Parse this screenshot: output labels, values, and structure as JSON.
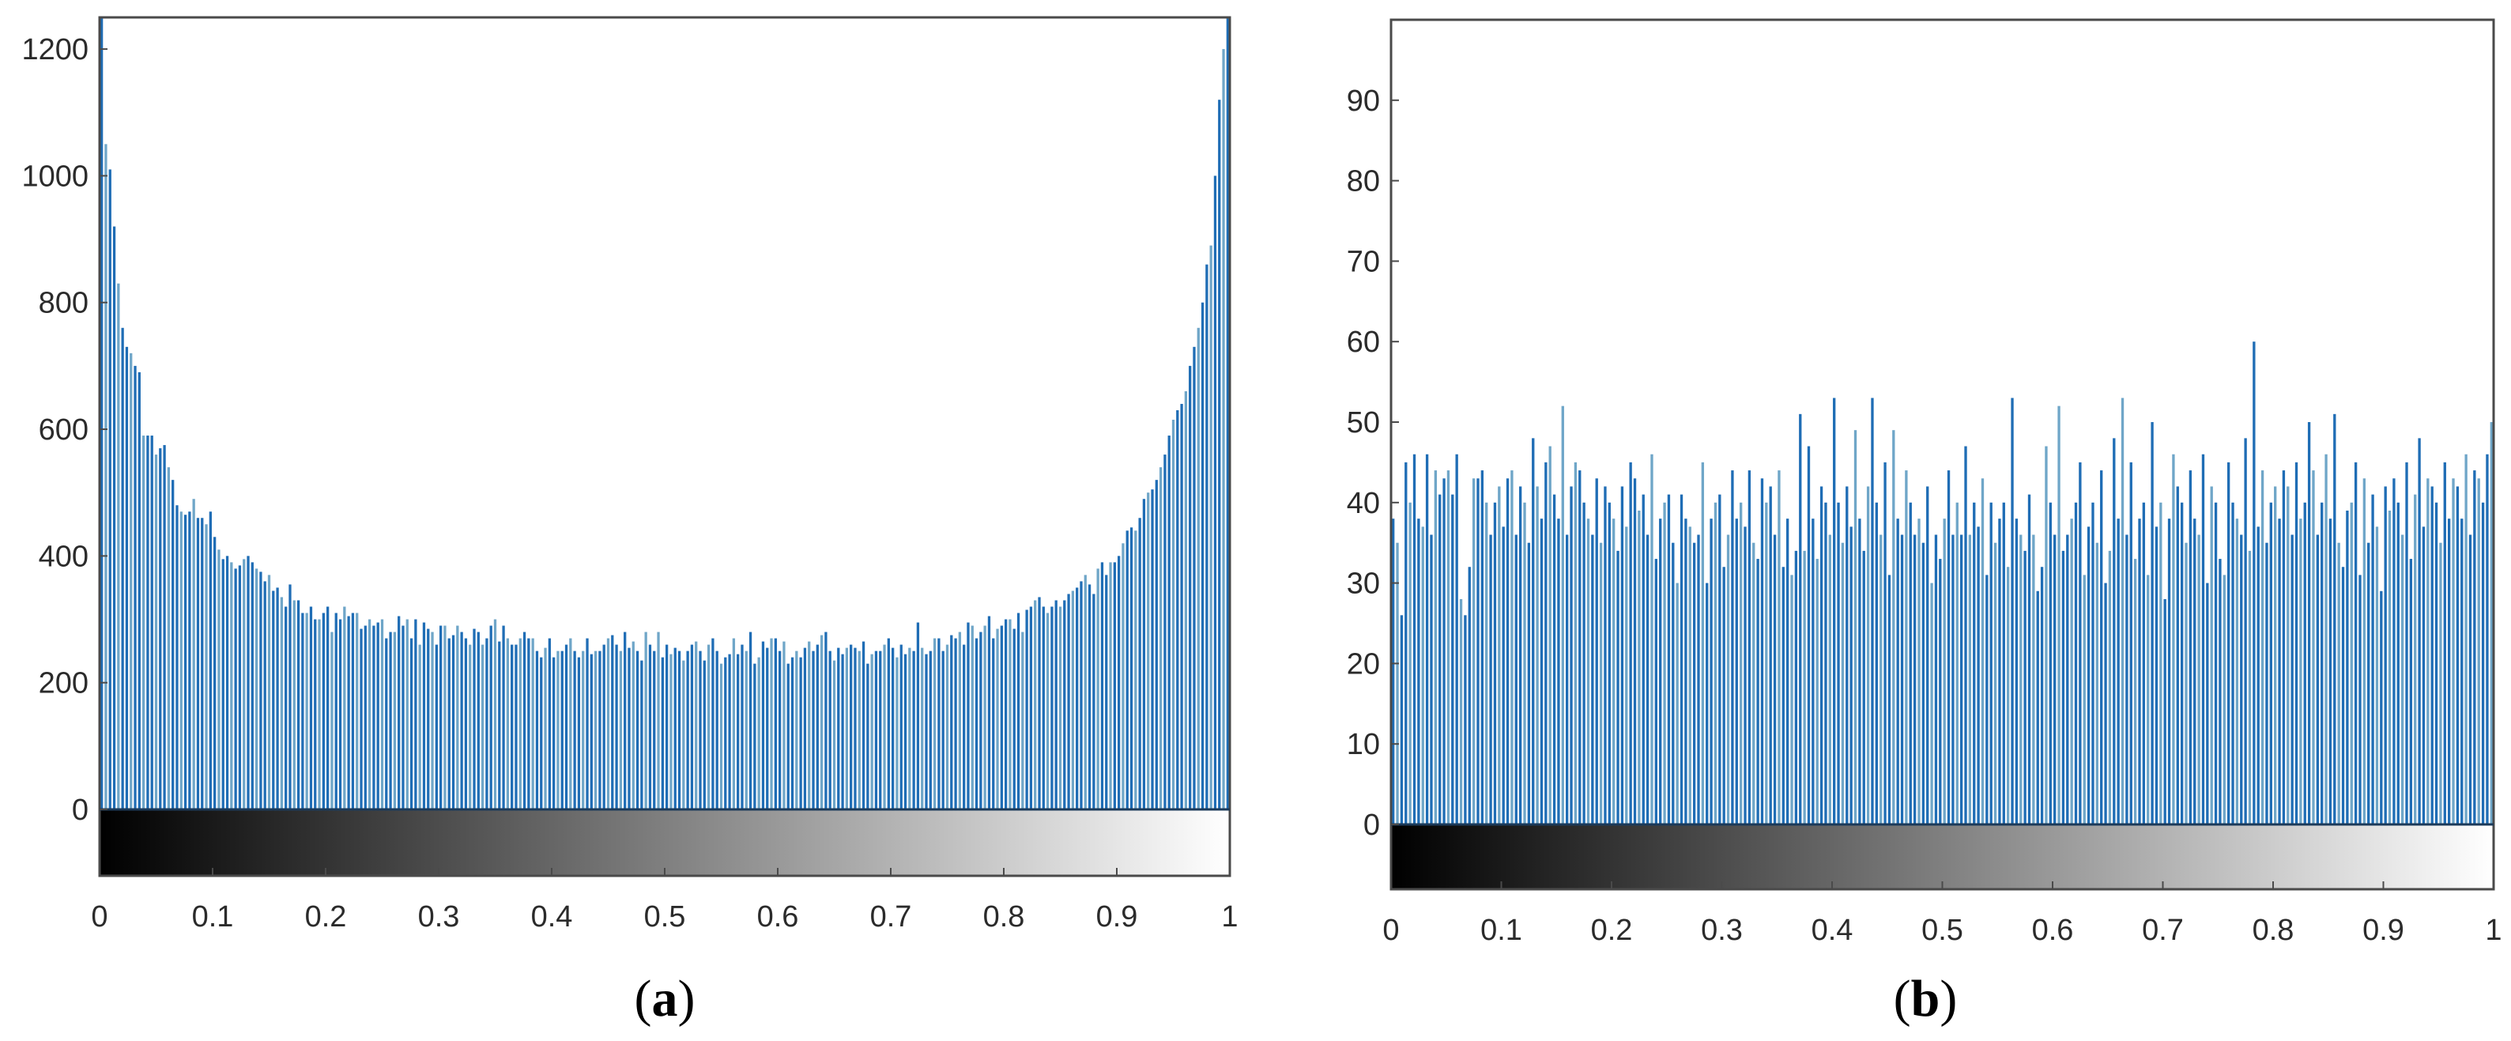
{
  "colors": {
    "bar_primary": "#1f6db5",
    "bar_secondary": "#6fa6c8",
    "axes": "#4a4a4a",
    "text": "#2b2b2b"
  },
  "chart_data": [
    {
      "type": "bar",
      "panel": "a",
      "caption_letter": "a",
      "xlim": [
        0,
        1
      ],
      "ylim": [
        -100,
        1250
      ],
      "x_ticks": [
        "0",
        "0.1",
        "0.2",
        "0.3",
        "0.4",
        "0.5",
        "0.6",
        "0.7",
        "0.8",
        "0.9",
        "1"
      ],
      "y_ticks": [
        "0",
        "200",
        "400",
        "600",
        "800",
        "1000",
        "1200"
      ],
      "colorbar": "grayscale black to white, from 0 to 1, below zero",
      "grid": false,
      "bin_count": 256,
      "values": [
        1250,
        1050,
        1010,
        920,
        830,
        760,
        730,
        720,
        700,
        690,
        590,
        590,
        590,
        560,
        570,
        575,
        540,
        520,
        480,
        470,
        465,
        470,
        490,
        460,
        460,
        450,
        470,
        430,
        410,
        395,
        400,
        390,
        380,
        385,
        395,
        400,
        390,
        380,
        375,
        360,
        370,
        345,
        350,
        335,
        320,
        355,
        330,
        330,
        310,
        310,
        320,
        300,
        300,
        310,
        320,
        280,
        310,
        300,
        320,
        305,
        310,
        310,
        285,
        290,
        300,
        290,
        295,
        300,
        270,
        280,
        280,
        305,
        290,
        300,
        270,
        300,
        260,
        295,
        285,
        280,
        260,
        290,
        290,
        270,
        275,
        290,
        280,
        270,
        260,
        285,
        280,
        260,
        270,
        290,
        300,
        265,
        290,
        270,
        260,
        260,
        270,
        280,
        270,
        270,
        250,
        240,
        255,
        270,
        240,
        250,
        250,
        260,
        270,
        250,
        240,
        250,
        270,
        245,
        250,
        250,
        260,
        270,
        275,
        260,
        250,
        280,
        255,
        265,
        250,
        235,
        280,
        260,
        250,
        280,
        240,
        260,
        245,
        255,
        250,
        235,
        250,
        260,
        265,
        250,
        235,
        260,
        270,
        250,
        230,
        240,
        245,
        270,
        245,
        260,
        250,
        280,
        230,
        240,
        265,
        255,
        270,
        270,
        250,
        265,
        230,
        240,
        250,
        240,
        255,
        265,
        250,
        260,
        275,
        280,
        250,
        235,
        255,
        245,
        255,
        260,
        255,
        250,
        265,
        230,
        245,
        250,
        250,
        260,
        270,
        255,
        240,
        260,
        245,
        255,
        250,
        295,
        255,
        245,
        250,
        270,
        270,
        250,
        260,
        275,
        270,
        280,
        260,
        295,
        290,
        270,
        280,
        290,
        305,
        270,
        285,
        290,
        300,
        300,
        285,
        310,
        280,
        315,
        320,
        330,
        335,
        320,
        310,
        320,
        330,
        320,
        330,
        340,
        345,
        350,
        360,
        370,
        355,
        340,
        380,
        390,
        370,
        390,
        390,
        400,
        420,
        440,
        445,
        440,
        460,
        490,
        500,
        505,
        520,
        540,
        560,
        590,
        615,
        630,
        640,
        660,
        700,
        730,
        760,
        800,
        860,
        890,
        1000,
        1120,
        1200,
        1260
      ]
    },
    {
      "type": "bar",
      "panel": "b",
      "caption_letter": "b",
      "xlim": [
        0,
        1
      ],
      "ylim": [
        -8,
        100
      ],
      "x_ticks": [
        "0",
        "0.1",
        "0.2",
        "0.3",
        "0.4",
        "0.5",
        "0.6",
        "0.7",
        "0.8",
        "0.9",
        "1"
      ],
      "y_ticks": [
        "0",
        "10",
        "20",
        "30",
        "40",
        "50",
        "60",
        "70",
        "80",
        "90"
      ],
      "colorbar": "grayscale black to white, from 0 to 1, below zero",
      "grid": false,
      "bin_count": 256,
      "values": [
        38,
        35,
        26,
        45,
        40,
        46,
        38,
        37,
        46,
        36,
        44,
        41,
        43,
        44,
        41,
        46,
        28,
        26,
        32,
        43,
        43,
        44,
        40,
        36,
        40,
        42,
        37,
        43,
        44,
        36,
        42,
        40,
        35,
        48,
        42,
        38,
        45,
        47,
        41,
        38,
        52,
        36,
        42,
        45,
        44,
        40,
        38,
        36,
        43,
        35,
        42,
        40,
        38,
        34,
        42,
        37,
        45,
        43,
        39,
        41,
        36,
        46,
        33,
        38,
        40,
        41,
        35,
        30,
        41,
        38,
        37,
        35,
        36,
        45,
        30,
        38,
        40,
        41,
        32,
        36,
        44,
        38,
        40,
        37,
        44,
        35,
        33,
        43,
        40,
        42,
        36,
        44,
        32,
        38,
        31,
        34,
        51,
        34,
        47,
        38,
        33,
        42,
        40,
        36,
        53,
        40,
        35,
        42,
        37,
        49,
        38,
        34,
        42,
        53,
        40,
        36,
        45,
        31,
        49,
        38,
        36,
        44,
        40,
        36,
        38,
        35,
        42,
        30,
        36,
        33,
        38,
        44,
        36,
        40,
        36,
        47,
        36,
        40,
        37,
        43,
        31,
        40,
        35,
        38,
        40,
        32,
        53,
        38,
        36,
        34,
        41,
        36,
        29,
        32,
        47,
        40,
        36,
        52,
        34,
        36,
        38,
        40,
        45,
        31,
        37,
        40,
        35,
        44,
        30,
        34,
        48,
        38,
        53,
        36,
        45,
        33,
        38,
        40,
        31,
        50,
        37,
        40,
        28,
        38,
        46,
        42,
        40,
        35,
        44,
        38,
        36,
        46,
        30,
        42,
        40,
        33,
        31,
        45,
        40,
        38,
        36,
        48,
        34,
        60,
        37,
        44,
        35,
        40,
        42,
        38,
        44,
        42,
        36,
        45,
        38,
        40,
        50,
        44,
        36,
        40,
        46,
        38,
        51,
        35,
        32,
        39,
        40,
        45,
        31,
        43,
        35,
        41,
        37,
        29,
        42,
        39,
        43,
        40,
        36,
        45,
        33,
        41,
        48,
        37,
        43,
        42,
        40,
        35,
        45,
        38,
        43,
        42,
        38,
        46,
        36,
        44,
        43,
        40,
        46,
        50
      ]
    }
  ]
}
